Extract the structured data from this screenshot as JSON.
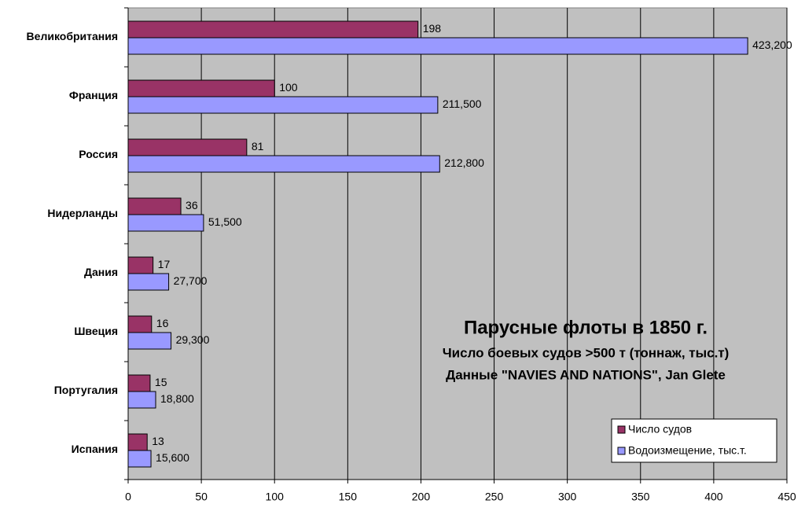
{
  "chart_data": {
    "type": "bar",
    "orientation": "horizontal",
    "title": "Парусные флоты в 1850 г.",
    "subtitle": [
      "Число боевых судов >500 т (тоннаж, тыс.т)",
      "Данные \"NAVIES AND NATIONS\", Jan Glete"
    ],
    "categories": [
      "Великобритания",
      "Франция",
      "Россия",
      "Нидерланды",
      "Дания",
      "Швеция",
      "Португалия",
      "Испания"
    ],
    "series": [
      {
        "name": "Число судов",
        "color": "#993366",
        "values": [
          198,
          100,
          81,
          36,
          17,
          16,
          15,
          13
        ]
      },
      {
        "name": "Водоизмещение, тыс.т.",
        "color": "#9999ff",
        "values": [
          423.2,
          211.5,
          212.8,
          51.5,
          27.7,
          29.3,
          18.8,
          15.6
        ],
        "value_labels": [
          "423,200",
          "211,500",
          "212,800",
          "51,500",
          "27,700",
          "29,300",
          "18,800",
          "15,600"
        ]
      }
    ],
    "xlim": [
      0,
      450
    ],
    "xticks": [
      0,
      50,
      100,
      150,
      200,
      250,
      300,
      350,
      400,
      450
    ],
    "grid": true,
    "legend": "bottom-right"
  }
}
